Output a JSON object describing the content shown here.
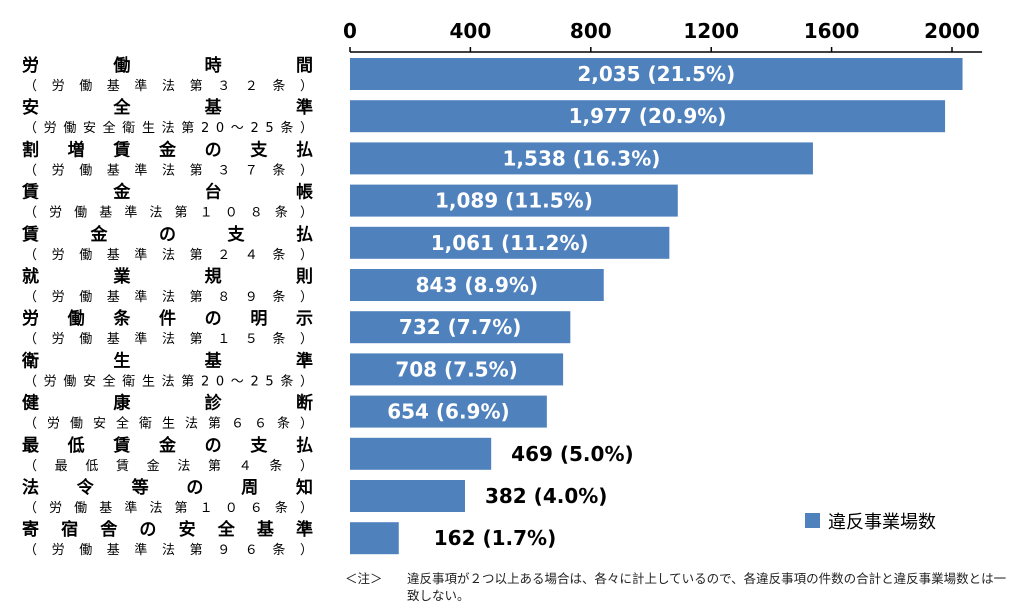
{
  "chart_data": {
    "type": "bar",
    "orientation": "horizontal",
    "xlim": [
      0,
      2100
    ],
    "x_ticks": [
      "0",
      "400",
      "800",
      "1200",
      "1600",
      "2000"
    ],
    "x_tick_values": [
      0,
      400,
      800,
      1200,
      1600,
      2000
    ],
    "grid": false,
    "legend_position": "bottom-right",
    "colors": {
      "bar": "#4F81BD",
      "inside_label": "#ffffff",
      "outside_label": "#000000"
    },
    "categories": [
      {
        "name": "労働時間",
        "law": "（労働基準法第３２条）"
      },
      {
        "name": "安全基準",
        "law": "（労働安全衛生法第20～25条）"
      },
      {
        "name": "割増賃金の支払",
        "law": "（労働基準法第３７条）"
      },
      {
        "name": "賃金台帳",
        "law": "（労働基準法第１０８条）"
      },
      {
        "name": "賃金の支払",
        "law": "（労働基準法第２４条）"
      },
      {
        "name": "就業規則",
        "law": "（労働基準法第８９条）"
      },
      {
        "name": "労働条件の明示",
        "law": "（労働基準法第１５条）"
      },
      {
        "name": "衛生基準",
        "law": "（労働安全衛生法第20～25条）"
      },
      {
        "name": "健康診断",
        "law": "（労働安全衛生法第６６条）"
      },
      {
        "name": "最低賃金の支払",
        "law": "（最低賃金法第４条）"
      },
      {
        "name": "法令等の周知",
        "law": "（労働基準法第１０６条）"
      },
      {
        "name": "寄宿舎の安全基準",
        "law": "（労働基準法第９６条）"
      }
    ],
    "series": [
      {
        "name": "違反事業場数",
        "values": [
          2035,
          1977,
          1538,
          1089,
          1061,
          843,
          732,
          708,
          654,
          469,
          382,
          162
        ],
        "labels": [
          "2,035 (21.5%)",
          "1,977 (20.9%)",
          "1,538 (16.3%)",
          "1,089 (11.5%)",
          "1,061 (11.2%)",
          "843 (8.9%)",
          "732 (7.7%)",
          "708 (7.5%)",
          "654 (6.9%)",
          "469 (5.0%)",
          "382 (4.0%)",
          "162 (1.7%)"
        ]
      }
    ]
  },
  "note": {
    "label": "＜注＞",
    "text": "違反事項が２つ以上ある場合は、各々に計上しているので、各違反事項の件数の合計と違反事業場数とは一致しない。"
  }
}
